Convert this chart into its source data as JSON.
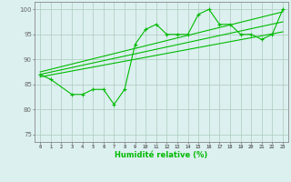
{
  "bg_color": "#dcf0f0",
  "grid_color": "#aaccbb",
  "line_color": "#00bb00",
  "xlabel": "Humidité relative (%)",
  "ylim": [
    73.5,
    101.5
  ],
  "xlim": [
    -0.5,
    23.5
  ],
  "yticks": [
    75,
    80,
    85,
    90,
    95,
    100
  ],
  "xticks": [
    0,
    1,
    2,
    3,
    4,
    5,
    6,
    7,
    8,
    9,
    10,
    11,
    12,
    13,
    14,
    15,
    16,
    17,
    18,
    19,
    20,
    21,
    22,
    23
  ],
  "series_x": [
    0,
    1,
    3,
    4,
    5,
    6,
    7,
    8,
    9,
    10,
    11,
    12,
    13,
    14,
    15,
    16,
    17,
    18,
    19,
    20,
    21,
    22,
    23
  ],
  "series_y": [
    87,
    86,
    83,
    83,
    84,
    84,
    81,
    84,
    93,
    96,
    97,
    95,
    95,
    95,
    99,
    100,
    97,
    97,
    95,
    95,
    94,
    95,
    100
  ],
  "trend1_x": [
    0,
    23
  ],
  "trend1_y": [
    87.5,
    99.5
  ],
  "trend2_x": [
    0,
    23
  ],
  "trend2_y": [
    87.0,
    97.5
  ],
  "trend3_x": [
    0,
    23
  ],
  "trend3_y": [
    86.5,
    95.5
  ]
}
